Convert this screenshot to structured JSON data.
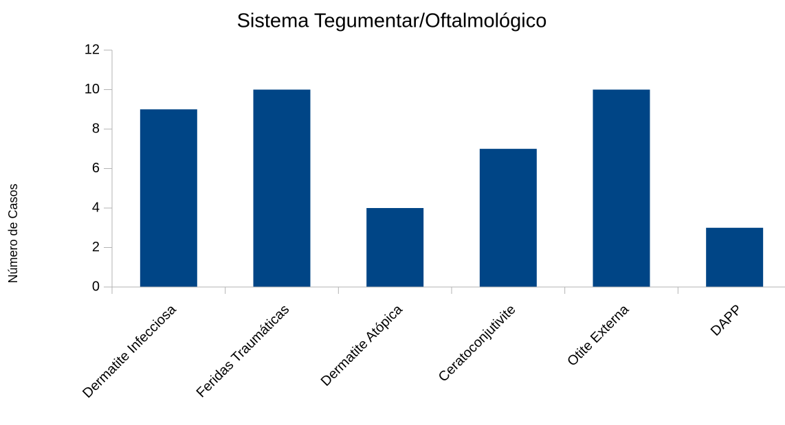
{
  "chart_data": {
    "type": "bar",
    "title": "Sistema Tegumentar/Oftalmológico",
    "y_label": "Número de Casos",
    "categories": [
      "Dermatite Infecciosa",
      "Feridas Traumáticas",
      "Dermatite Atópica",
      "Ceratoconjutivite",
      "Otite Externa",
      "DAPP"
    ],
    "values": [
      9,
      10,
      4,
      7,
      10,
      3
    ],
    "color": "#004586",
    "ylim": [
      0,
      12
    ],
    "yticks": [
      0,
      2,
      4,
      6,
      8,
      10,
      12
    ],
    "grid": false
  }
}
